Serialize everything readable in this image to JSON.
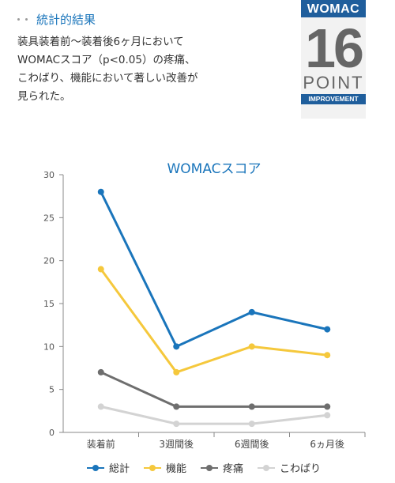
{
  "section": {
    "title": "統計的結果"
  },
  "body_lines": [
    "装具装着前〜装着後6ヶ月において",
    "WOMACスコア（p<0.05）の疼痛、",
    "こわばり、機能において著しい改善が",
    "見られた。"
  ],
  "badge": {
    "top": "WOMAC",
    "number": "16",
    "word": "POINT",
    "sub": "IMPROVEMENT"
  },
  "colors": {
    "accent": "#1a75bb",
    "badge_blue": "#1f5e9c"
  },
  "chart_data": {
    "type": "line",
    "title": "WOMACスコア",
    "categories": [
      "装着前",
      "3週間後",
      "6週間後",
      "6ヵ月後"
    ],
    "ylim": [
      0,
      30
    ],
    "yticks": [
      0,
      5,
      10,
      15,
      20,
      25,
      30
    ],
    "grid": false,
    "legend_position": "bottom",
    "series": [
      {
        "name": "総計",
        "color": "#1a75bb",
        "values": [
          28,
          10,
          14,
          12
        ]
      },
      {
        "name": "機能",
        "color": "#f5c83c",
        "values": [
          19,
          7,
          10,
          9
        ]
      },
      {
        "name": "疼痛",
        "color": "#6e6e6e",
        "values": [
          7,
          3,
          3,
          3
        ]
      },
      {
        "name": "こわばり",
        "color": "#d3d3d3",
        "values": [
          3,
          1,
          1,
          2
        ]
      }
    ]
  }
}
